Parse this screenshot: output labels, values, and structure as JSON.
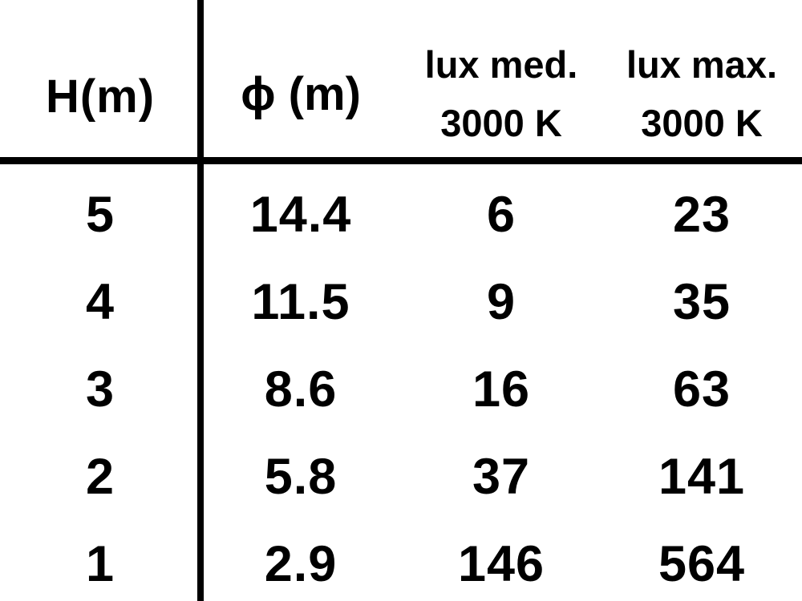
{
  "page": {
    "background_color": "#ffffff",
    "text_color": "#000000",
    "rule_color": "#000000"
  },
  "table": {
    "headers": [
      {
        "label": "H(m)"
      },
      {
        "label": "ϕ (m)"
      },
      {
        "label": "lux med.",
        "sublabel": "3000 K"
      },
      {
        "label": "lux max.",
        "sublabel": "3000 K"
      }
    ],
    "rows": [
      [
        "5",
        "14.4",
        "6",
        "23"
      ],
      [
        "4",
        "11.5",
        "9",
        "35"
      ],
      [
        "3",
        "8.6",
        "16",
        "63"
      ],
      [
        "2",
        "5.8",
        "37",
        "141"
      ],
      [
        "1",
        "2.9",
        "146",
        "564"
      ]
    ]
  },
  "chart_data": {
    "type": "table",
    "columns": [
      "H(m)",
      "ϕ (m)",
      "lux med. 3000 K",
      "lux max. 3000 K"
    ],
    "rows": [
      [
        5,
        14.4,
        6,
        23
      ],
      [
        4,
        11.5,
        9,
        35
      ],
      [
        3,
        8.6,
        16,
        63
      ],
      [
        2,
        5.8,
        37,
        141
      ],
      [
        1,
        2.9,
        146,
        564
      ]
    ]
  }
}
